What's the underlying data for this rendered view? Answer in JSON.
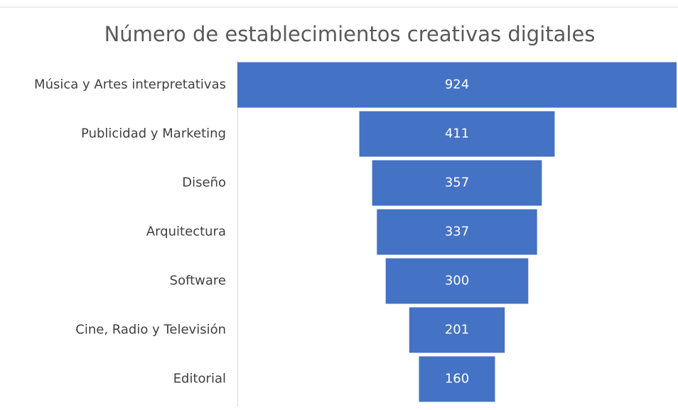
{
  "chart_data": {
    "type": "funnel",
    "title": "Número de establecimientos creativas digitales",
    "categories": [
      "Música y Artes interpretativas",
      "Publicidad y Marketing",
      "Diseño",
      "Arquitectura",
      "Software",
      "Cine, Radio y Televisión",
      "Editorial"
    ],
    "values": [
      924,
      411,
      357,
      337,
      300,
      201,
      160
    ],
    "color": "#4472c4"
  }
}
